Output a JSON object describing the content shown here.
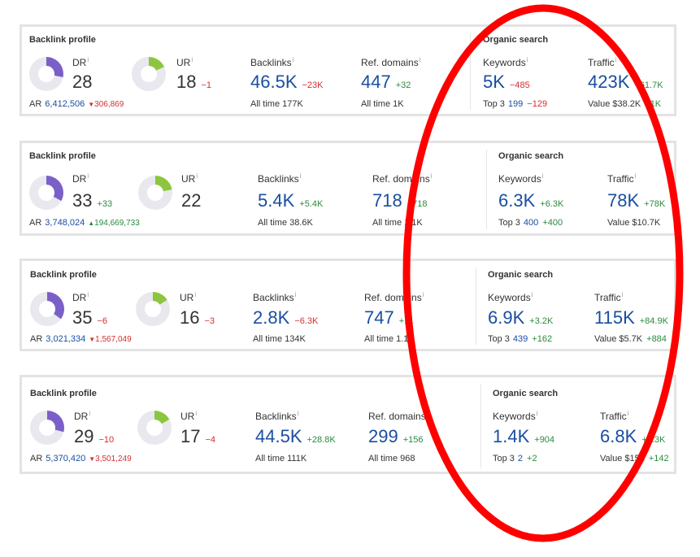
{
  "cards": [
    {
      "title": "Backlink profile",
      "dr": {
        "label": "DR",
        "value": "28",
        "delta": ""
      },
      "ur": {
        "label": "UR",
        "value": "18",
        "delta": "−1"
      },
      "ar": {
        "label": "AR",
        "value": "6,412,506",
        "delta": "306,869"
      },
      "backlinks": {
        "label": "Backlinks",
        "value": "46.5K",
        "delta": "−23K",
        "sub_label": "All time",
        "sub_value": "177K"
      },
      "ref_domains": {
        "label": "Ref. domains",
        "value": "447",
        "delta": "+32",
        "sub_label": "All time",
        "sub_value": "1K"
      },
      "organic_title": "Organic search",
      "keywords": {
        "label": "Keywords",
        "value": "5K",
        "delta": "−485",
        "sub_label": "Top 3",
        "sub_value": "199",
        "sub_delta": "−129"
      },
      "traffic": {
        "label": "Traffic",
        "value": "423K",
        "delta": "+61.7K",
        "sub_label": "Value",
        "sub_value": "$38.2K",
        "sub_delta": "+1K"
      }
    },
    {
      "title": "Backlink profile",
      "dr": {
        "label": "DR",
        "value": "33",
        "delta": "+33"
      },
      "ur": {
        "label": "UR",
        "value": "22",
        "delta": ""
      },
      "ar": {
        "label": "AR",
        "value": "3,748,024",
        "delta": "194,669,733"
      },
      "backlinks": {
        "label": "Backlinks",
        "value": "5.4K",
        "delta": "+5.4K",
        "sub_label": "All time",
        "sub_value": "38.6K"
      },
      "ref_domains": {
        "label": "Ref. domains",
        "value": "718",
        "delta": "+718",
        "sub_label": "All time",
        "sub_value": "1.1K"
      },
      "organic_title": "Organic search",
      "keywords": {
        "label": "Keywords",
        "value": "6.3K",
        "delta": "+6.3K",
        "sub_label": "Top 3",
        "sub_value": "400",
        "sub_delta": "+400"
      },
      "traffic": {
        "label": "Traffic",
        "value": "78K",
        "delta": "+78K",
        "sub_label": "Value",
        "sub_value": "$10.7K",
        "sub_delta": ""
      }
    },
    {
      "title": "Backlink profile",
      "dr": {
        "label": "DR",
        "value": "35",
        "delta": "−6"
      },
      "ur": {
        "label": "UR",
        "value": "16",
        "delta": "−3"
      },
      "ar": {
        "label": "AR",
        "value": "3,021,334",
        "delta": "1,567,049"
      },
      "backlinks": {
        "label": "Backlinks",
        "value": "2.8K",
        "delta": "−6.3K",
        "sub_label": "All time",
        "sub_value": "134K"
      },
      "ref_domains": {
        "label": "Ref. domains",
        "value": "747",
        "delta": "+11",
        "sub_label": "All time",
        "sub_value": "1.1K"
      },
      "organic_title": "Organic search",
      "keywords": {
        "label": "Keywords",
        "value": "6.9K",
        "delta": "+3.2K",
        "sub_label": "Top 3",
        "sub_value": "439",
        "sub_delta": "+162"
      },
      "traffic": {
        "label": "Traffic",
        "value": "115K",
        "delta": "+84.9K",
        "sub_label": "Value",
        "sub_value": "$5.7K",
        "sub_delta": "+884"
      }
    },
    {
      "title": "Backlink profile",
      "dr": {
        "label": "DR",
        "value": "29",
        "delta": "−10"
      },
      "ur": {
        "label": "UR",
        "value": "17",
        "delta": "−4"
      },
      "ar": {
        "label": "AR",
        "value": "5,370,420",
        "delta": "3,501,249"
      },
      "backlinks": {
        "label": "Backlinks",
        "value": "44.5K",
        "delta": "+28.8K",
        "sub_label": "All time",
        "sub_value": "111K"
      },
      "ref_domains": {
        "label": "Ref. domains",
        "value": "299",
        "delta": "+156",
        "sub_label": "All time",
        "sub_value": "968"
      },
      "organic_title": "Organic search",
      "keywords": {
        "label": "Keywords",
        "value": "1.4K",
        "delta": "+904",
        "sub_label": "Top 3",
        "sub_value": "2",
        "sub_delta": "+2"
      },
      "traffic": {
        "label": "Traffic",
        "value": "6.8K",
        "delta": "+6.3K",
        "sub_label": "Value",
        "sub_value": "$152",
        "sub_delta": "+142"
      }
    }
  ],
  "info_glyph": "i",
  "colors": {
    "dr_ring": "#7b5fc9",
    "ur_ring": "#8cc63f",
    "ring_bg": "#e8e8ee",
    "positive": "#2b8a3e",
    "negative": "#d32f2f",
    "accent_blue": "#1a4ea1",
    "annotation": "#ff0000"
  }
}
